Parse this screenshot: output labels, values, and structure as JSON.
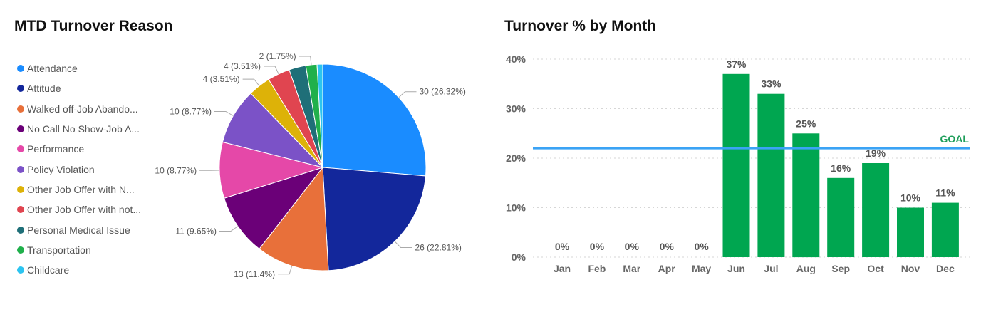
{
  "left_panel": {
    "title": "MTD Turnover Reason"
  },
  "right_panel": {
    "title": "Turnover % by Month"
  },
  "chart_data": [
    {
      "type": "pie",
      "title": "MTD Turnover Reason",
      "slices": [
        {
          "label": "Attendance",
          "value": 30,
          "display": "30 (26.32%)",
          "color": "#1A8CFF"
        },
        {
          "label": "Attitude",
          "value": 26,
          "display": "26 (22.81%)",
          "color": "#13279B"
        },
        {
          "label": "Walked off-Job Abando...",
          "value": 13,
          "display": "13 (11.4%)",
          "color": "#E8703A"
        },
        {
          "label": "No Call No Show-Job A...",
          "value": 11,
          "display": "11 (9.65%)",
          "color": "#6B0078"
        },
        {
          "label": "Performance",
          "value": 10,
          "display": "10 (8.77%)",
          "color": "#E548A8"
        },
        {
          "label": "Policy Violation",
          "value": 10,
          "display": "10 (8.77%)",
          "color": "#7B52C7"
        },
        {
          "label": "Other Job Offer with N...",
          "value": 4,
          "display": "4 (3.51%)",
          "color": "#DDB208"
        },
        {
          "label": "Other Job Offer with not...",
          "value": 4,
          "display": "4 (3.51%)",
          "color": "#E04550"
        },
        {
          "label": "Personal Medical Issue",
          "value": 3,
          "display": "",
          "color": "#1F6F78"
        },
        {
          "label": "Transportation",
          "value": 2,
          "display": "2 (1.75%)",
          "color": "#20B04B"
        },
        {
          "label": "Childcare",
          "value": 1,
          "display": "",
          "color": "#2CC4F0"
        }
      ],
      "legend_position": "left"
    },
    {
      "type": "bar",
      "title": "Turnover % by Month",
      "categories": [
        "Jan",
        "Feb",
        "Mar",
        "Apr",
        "May",
        "Jun",
        "Jul",
        "Aug",
        "Sep",
        "Oct",
        "Nov",
        "Dec"
      ],
      "values": [
        0,
        0,
        0,
        0,
        0,
        37,
        33,
        25,
        16,
        19,
        10,
        11
      ],
      "labels": [
        "0%",
        "0%",
        "0%",
        "0%",
        "0%",
        "37%",
        "33%",
        "25%",
        "16%",
        "19%",
        "10%",
        "11%"
      ],
      "ylim": [
        0,
        40
      ],
      "yticks": [
        "0%",
        "10%",
        "20%",
        "30%",
        "40%"
      ],
      "goal": {
        "value": 22,
        "label": "GOAL",
        "color": "#3BA3F5"
      },
      "bar_color": "#00A650",
      "grid": true
    }
  ]
}
